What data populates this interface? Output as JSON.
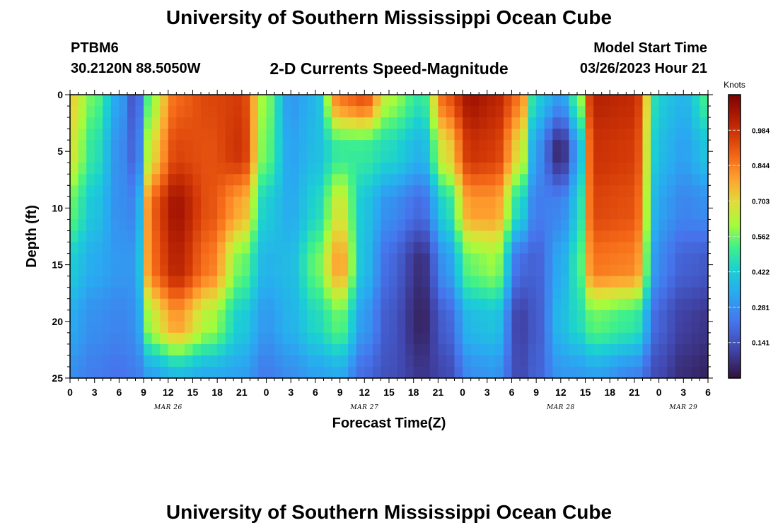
{
  "header": {
    "title_top": "University of Southern Mississippi Ocean Cube",
    "title_bottom": "University of Southern Mississippi Ocean Cube",
    "station": "PTBM6",
    "coordinates": "30.2120N  88.5050W",
    "subtitle": "2-D Currents Speed-Magnitude",
    "model_start_label": "Model Start Time",
    "model_start_value": "03/26/2023 Hour 21"
  },
  "chart_data": {
    "type": "heatmap",
    "title": "2-D Currents Speed-Magnitude",
    "xlabel": "Forecast Time(Z)",
    "ylabel": "Depth (ft)",
    "x_start": "2023-03-26T00Z",
    "x_end": "2023-03-29T06Z",
    "x_tick_labels": [
      "0",
      "3",
      "6",
      "9",
      "12",
      "15",
      "18",
      "21",
      "0",
      "3",
      "6",
      "9",
      "12",
      "15",
      "18",
      "21",
      "0",
      "3",
      "6",
      "9",
      "12",
      "15",
      "18",
      "21",
      "0",
      "3",
      "6"
    ],
    "date_labels": [
      {
        "label": "MAR 26",
        "at_tick": 4
      },
      {
        "label": "MAR 27",
        "at_tick": 12
      },
      {
        "label": "MAR 28",
        "at_tick": 20
      },
      {
        "label": "MAR 29",
        "at_tick": 25
      }
    ],
    "y_ticks": [
      0,
      5,
      10,
      15,
      20,
      25
    ],
    "ylim": [
      25,
      0
    ],
    "colorbar": {
      "unit": "Knots",
      "range": [
        0.0,
        1.125
      ],
      "ticks": [
        0.141,
        0.281,
        0.422,
        0.562,
        0.703,
        0.844,
        0.984
      ],
      "tick_labels": [
        "0.141",
        "0.281",
        "0.422",
        "0.562",
        "0.703",
        "0.844",
        "0.984"
      ],
      "colormap": "turbo"
    },
    "depth_levels_ft": [
      0,
      5,
      10,
      15,
      20,
      25
    ],
    "profiles": [
      {
        "time": "Mar 26 00",
        "speed": [
          0.72,
          0.68,
          0.55,
          0.42,
          0.34,
          0.28
        ]
      },
      {
        "time": "Mar 26 03",
        "speed": [
          0.55,
          0.48,
          0.4,
          0.34,
          0.28,
          0.24
        ]
      },
      {
        "time": "Mar 26 06",
        "speed": [
          0.32,
          0.28,
          0.28,
          0.3,
          0.26,
          0.22
        ]
      },
      {
        "time": "Mar 26 08",
        "speed": [
          0.14,
          0.18,
          0.26,
          0.3,
          0.28,
          0.24
        ]
      },
      {
        "time": "Mar 26 10",
        "speed": [
          0.6,
          0.7,
          0.9,
          0.88,
          0.65,
          0.32
        ]
      },
      {
        "time": "Mar 26 13",
        "speed": [
          0.88,
          0.94,
          1.06,
          1.02,
          0.8,
          0.38
        ]
      },
      {
        "time": "Mar 26 17",
        "speed": [
          0.94,
          0.92,
          0.92,
          0.86,
          0.62,
          0.34
        ]
      },
      {
        "time": "Mar 26 21",
        "speed": [
          0.96,
          0.98,
          0.78,
          0.56,
          0.42,
          0.32
        ]
      },
      {
        "time": "Mar 27 00",
        "speed": [
          0.58,
          0.55,
          0.42,
          0.36,
          0.3,
          0.24
        ]
      },
      {
        "time": "Mar 27 03",
        "speed": [
          0.3,
          0.32,
          0.34,
          0.38,
          0.36,
          0.28
        ]
      },
      {
        "time": "Mar 27 06",
        "speed": [
          0.36,
          0.38,
          0.44,
          0.55,
          0.45,
          0.32
        ]
      },
      {
        "time": "Mar 27 09",
        "speed": [
          0.86,
          0.5,
          0.68,
          0.8,
          0.55,
          0.34
        ]
      },
      {
        "time": "Mar 27 12",
        "speed": [
          0.92,
          0.5,
          0.4,
          0.38,
          0.3,
          0.2
        ]
      },
      {
        "time": "Mar 27 15",
        "speed": [
          0.62,
          0.45,
          0.28,
          0.2,
          0.16,
          0.14
        ]
      },
      {
        "time": "Mar 27 19",
        "speed": [
          0.48,
          0.36,
          0.2,
          0.06,
          0.04,
          0.08
        ]
      },
      {
        "time": "Mar 27 22",
        "speed": [
          0.9,
          0.7,
          0.45,
          0.3,
          0.18,
          0.12
        ]
      },
      {
        "time": "Mar 28 01",
        "speed": [
          1.06,
          0.98,
          0.8,
          0.56,
          0.38,
          0.28
        ]
      },
      {
        "time": "Mar 28 04",
        "speed": [
          1.02,
          0.96,
          0.8,
          0.6,
          0.4,
          0.3
        ]
      },
      {
        "time": "Mar 28 07",
        "speed": [
          0.86,
          0.7,
          0.45,
          0.2,
          0.1,
          0.12
        ]
      },
      {
        "time": "Mar 28 09",
        "speed": [
          0.42,
          0.3,
          0.24,
          0.18,
          0.16,
          0.18
        ]
      },
      {
        "time": "Mar 28 12",
        "speed": [
          0.3,
          0.04,
          0.26,
          0.34,
          0.38,
          0.3
        ]
      },
      {
        "time": "Mar 28 14",
        "speed": [
          0.52,
          0.3,
          0.4,
          0.48,
          0.45,
          0.3
        ]
      },
      {
        "time": "Mar 28 16",
        "speed": [
          1.02,
          0.98,
          0.94,
          0.86,
          0.55,
          0.32
        ]
      },
      {
        "time": "Mar 28 21",
        "speed": [
          1.0,
          0.96,
          0.92,
          0.84,
          0.5,
          0.26
        ]
      },
      {
        "time": "Mar 29 00",
        "speed": [
          0.42,
          0.38,
          0.32,
          0.26,
          0.18,
          0.12
        ]
      },
      {
        "time": "Mar 29 03",
        "speed": [
          0.36,
          0.32,
          0.26,
          0.18,
          0.1,
          0.06
        ]
      },
      {
        "time": "Mar 29 06",
        "speed": [
          0.52,
          0.4,
          0.28,
          0.16,
          0.08,
          0.04
        ]
      }
    ]
  }
}
